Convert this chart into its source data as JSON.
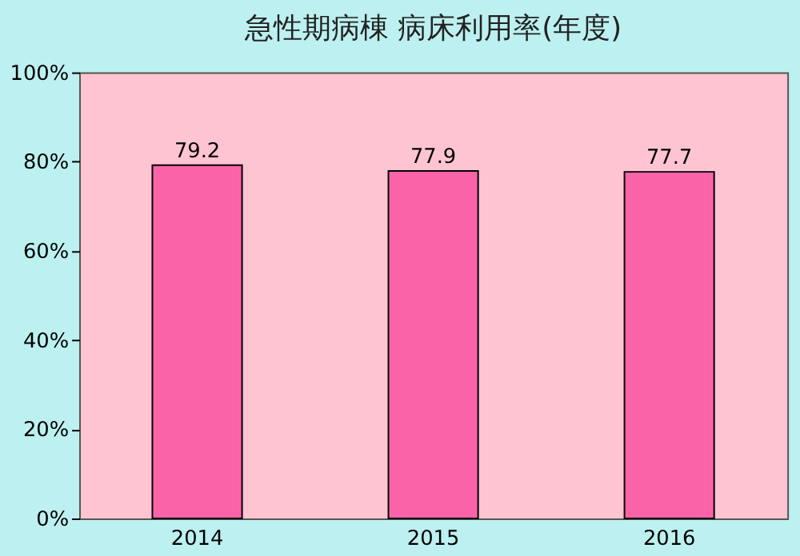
{
  "chart_data": {
    "type": "bar",
    "title": "急性期病棟 病床利用率(年度)",
    "categories": [
      "2014",
      "2015",
      "2016"
    ],
    "values": [
      79.2,
      77.9,
      77.7
    ],
    "color": "#fb63a9",
    "ylim": [
      0,
      100
    ],
    "yticks": [
      {
        "value": 0,
        "label": "0%"
      },
      {
        "value": 20,
        "label": "20%"
      },
      {
        "value": 40,
        "label": "40%"
      },
      {
        "value": 60,
        "label": "60%"
      },
      {
        "value": 80,
        "label": "80%"
      },
      {
        "value": 100,
        "label": "100%"
      }
    ],
    "data_labels": true,
    "grid": false
  }
}
